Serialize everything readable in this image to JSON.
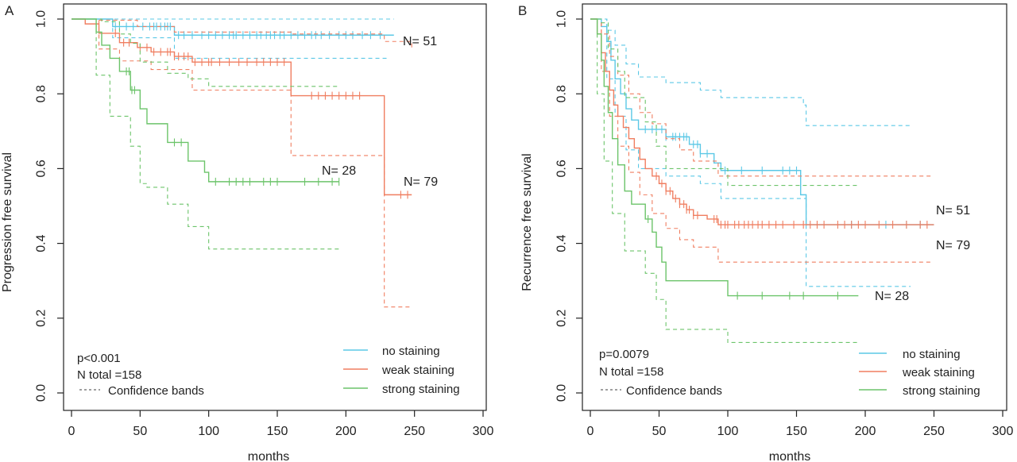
{
  "chart_data": [
    {
      "panel_label": "A",
      "type": "line",
      "xlabel": "months",
      "ylabel": "Progression free survival",
      "xlim": [
        0,
        300
      ],
      "ylim": [
        0,
        1
      ],
      "x_ticks": [
        "0",
        "50",
        "100",
        "150",
        "200",
        "250",
        "300"
      ],
      "y_ticks": [
        "0.0",
        "0.2",
        "0.4",
        "0.6",
        "0.8",
        "1.0"
      ],
      "grid": false,
      "p_value": "p<0.001",
      "n_total": "N total =158",
      "confidence_label": "Confidence bands",
      "legend_placement": "bottom-right",
      "series": [
        {
          "name": "no staining",
          "color": "#5bc8e6",
          "n_label": "N= 51",
          "steps": [
            [
              0,
              1.0
            ],
            [
              30,
              0.98
            ],
            [
              75,
              0.957
            ],
            [
              235,
              0.957
            ]
          ],
          "upper": [
            [
              0,
              1.0
            ],
            [
              235,
              1.0
            ]
          ],
          "lower": [
            [
              0,
              1.0
            ],
            [
              30,
              0.95
            ],
            [
              75,
              0.895
            ],
            [
              230,
              0.895
            ]
          ],
          "censor": [
            32,
            35,
            40,
            45,
            52,
            57,
            60,
            62,
            65,
            68,
            70,
            72,
            78,
            82,
            88,
            95,
            100,
            105,
            110,
            115,
            118,
            120,
            125,
            130,
            135,
            138,
            142,
            145,
            148,
            152,
            155,
            160,
            165,
            170,
            175,
            178,
            182,
            188,
            195,
            200,
            205,
            212,
            218,
            225
          ]
        },
        {
          "name": "weak staining",
          "color": "#f07e60",
          "n_label": "N= 79",
          "steps": [
            [
              0,
              1.0
            ],
            [
              10,
              0.987
            ],
            [
              20,
              0.962
            ],
            [
              35,
              0.937
            ],
            [
              48,
              0.924
            ],
            [
              58,
              0.912
            ],
            [
              75,
              0.9
            ],
            [
              88,
              0.885
            ],
            [
              160,
              0.885
            ],
            [
              160,
              0.795
            ],
            [
              228,
              0.795
            ],
            [
              228,
              0.53
            ],
            [
              248,
              0.53
            ]
          ],
          "upper": [
            [
              0,
              1.0
            ],
            [
              20,
              0.997
            ],
            [
              48,
              0.98
            ],
            [
              75,
              0.965
            ],
            [
              160,
              0.96
            ],
            [
              228,
              0.94
            ],
            [
              248,
              0.92
            ]
          ],
          "lower": [
            [
              0,
              1.0
            ],
            [
              20,
              0.92
            ],
            [
              35,
              0.888
            ],
            [
              58,
              0.865
            ],
            [
              88,
              0.81
            ],
            [
              160,
              0.81
            ],
            [
              160,
              0.635
            ],
            [
              228,
              0.635
            ],
            [
              228,
              0.23
            ],
            [
              248,
              0.23
            ]
          ],
          "censor": [
            32,
            38,
            42,
            50,
            55,
            60,
            65,
            70,
            72,
            75,
            78,
            82,
            85,
            90,
            95,
            100,
            102,
            108,
            115,
            122,
            128,
            135,
            140,
            145,
            150,
            155,
            175,
            180,
            185,
            190,
            195,
            200,
            205,
            210,
            240,
            245
          ]
        },
        {
          "name": "strong staining",
          "color": "#6cc46a",
          "n_label": "N= 28",
          "steps": [
            [
              0,
              1.0
            ],
            [
              18,
              0.965
            ],
            [
              22,
              0.93
            ],
            [
              28,
              0.895
            ],
            [
              35,
              0.86
            ],
            [
              43,
              0.81
            ],
            [
              50,
              0.76
            ],
            [
              55,
              0.72
            ],
            [
              70,
              0.67
            ],
            [
              85,
              0.62
            ],
            [
              97,
              0.59
            ],
            [
              100,
              0.565
            ],
            [
              195,
              0.565
            ]
          ],
          "upper": [
            [
              0,
              1.0
            ],
            [
              22,
              0.993
            ],
            [
              35,
              0.96
            ],
            [
              43,
              0.935
            ],
            [
              50,
              0.885
            ],
            [
              70,
              0.855
            ],
            [
              85,
              0.84
            ],
            [
              100,
              0.82
            ],
            [
              195,
              0.82
            ]
          ],
          "lower": [
            [
              0,
              1.0
            ],
            [
              18,
              0.85
            ],
            [
              28,
              0.74
            ],
            [
              43,
              0.66
            ],
            [
              50,
              0.56
            ],
            [
              55,
              0.55
            ],
            [
              70,
              0.505
            ],
            [
              85,
              0.445
            ],
            [
              100,
              0.385
            ],
            [
              195,
              0.385
            ]
          ],
          "censor": [
            40,
            42,
            44,
            46,
            75,
            80,
            105,
            115,
            120,
            125,
            130,
            140,
            145,
            150,
            170,
            180,
            190,
            195
          ]
        }
      ]
    },
    {
      "panel_label": "B",
      "type": "line",
      "xlabel": "months",
      "ylabel": "Recurrence free survival",
      "xlim": [
        0,
        300
      ],
      "ylim": [
        0,
        1
      ],
      "x_ticks": [
        "0",
        "50",
        "100",
        "150",
        "200",
        "250",
        "300"
      ],
      "y_ticks": [
        "0.0",
        "0.2",
        "0.4",
        "0.6",
        "0.8",
        "1.0"
      ],
      "grid": false,
      "p_value": "p=0.0079",
      "n_total": "N total =158",
      "confidence_label": "Confidence bands",
      "legend_placement": "bottom-right",
      "series": [
        {
          "name": "no staining",
          "color": "#5bc8e6",
          "n_label": "N= 51",
          "steps": [
            [
              0,
              1.0
            ],
            [
              8,
              0.98
            ],
            [
              12,
              0.94
            ],
            [
              15,
              0.89
            ],
            [
              18,
              0.84
            ],
            [
              22,
              0.8
            ],
            [
              26,
              0.76
            ],
            [
              30,
              0.73
            ],
            [
              35,
              0.705
            ],
            [
              55,
              0.685
            ],
            [
              72,
              0.665
            ],
            [
              80,
              0.64
            ],
            [
              90,
              0.615
            ],
            [
              95,
              0.595
            ],
            [
              150,
              0.595
            ],
            [
              153,
              0.53
            ],
            [
              157,
              0.45
            ],
            [
              250,
              0.45
            ]
          ],
          "upper": [
            [
              0,
              1.0
            ],
            [
              12,
              0.97
            ],
            [
              18,
              0.93
            ],
            [
              26,
              0.88
            ],
            [
              35,
              0.845
            ],
            [
              55,
              0.83
            ],
            [
              80,
              0.81
            ],
            [
              95,
              0.79
            ],
            [
              155,
              0.77
            ],
            [
              157,
              0.715
            ],
            [
              233,
              0.715
            ]
          ],
          "lower": [
            [
              0,
              1.0
            ],
            [
              12,
              0.84
            ],
            [
              18,
              0.74
            ],
            [
              26,
              0.65
            ],
            [
              35,
              0.6
            ],
            [
              55,
              0.58
            ],
            [
              80,
              0.56
            ],
            [
              95,
              0.52
            ],
            [
              150,
              0.52
            ],
            [
              157,
              0.285
            ],
            [
              233,
              0.285
            ]
          ],
          "censor": [
            40,
            45,
            48,
            52,
            55,
            60,
            62,
            65,
            68,
            70,
            75,
            78,
            80,
            85,
            98,
            110,
            125,
            140,
            145,
            150,
            190,
            215,
            230,
            240
          ]
        },
        {
          "name": "weak staining",
          "color": "#f07e60",
          "n_label": "N= 79",
          "steps": [
            [
              0,
              1.0
            ],
            [
              5,
              0.96
            ],
            [
              8,
              0.91
            ],
            [
              11,
              0.86
            ],
            [
              14,
              0.81
            ],
            [
              17,
              0.77
            ],
            [
              20,
              0.74
            ],
            [
              24,
              0.71
            ],
            [
              28,
              0.68
            ],
            [
              32,
              0.655
            ],
            [
              36,
              0.625
            ],
            [
              40,
              0.6
            ],
            [
              45,
              0.58
            ],
            [
              50,
              0.56
            ],
            [
              55,
              0.54
            ],
            [
              60,
              0.52
            ],
            [
              65,
              0.505
            ],
            [
              70,
              0.49
            ],
            [
              75,
              0.475
            ],
            [
              85,
              0.465
            ],
            [
              93,
              0.45
            ],
            [
              250,
              0.45
            ]
          ],
          "upper": [
            [
              0,
              1.0
            ],
            [
              8,
              0.96
            ],
            [
              14,
              0.9
            ],
            [
              20,
              0.85
            ],
            [
              28,
              0.8
            ],
            [
              36,
              0.75
            ],
            [
              45,
              0.72
            ],
            [
              55,
              0.68
            ],
            [
              65,
              0.65
            ],
            [
              75,
              0.62
            ],
            [
              93,
              0.58
            ],
            [
              248,
              0.58
            ]
          ],
          "lower": [
            [
              0,
              1.0
            ],
            [
              8,
              0.86
            ],
            [
              14,
              0.74
            ],
            [
              20,
              0.66
            ],
            [
              28,
              0.59
            ],
            [
              36,
              0.53
            ],
            [
              45,
              0.48
            ],
            [
              55,
              0.44
            ],
            [
              65,
              0.41
            ],
            [
              75,
              0.39
            ],
            [
              93,
              0.35
            ],
            [
              248,
              0.35
            ]
          ],
          "censor": [
            48,
            52,
            55,
            58,
            62,
            65,
            68,
            70,
            72,
            75,
            78,
            90,
            92,
            95,
            98,
            100,
            105,
            108,
            112,
            115,
            118,
            122,
            125,
            130,
            135,
            140,
            148,
            155,
            160,
            165,
            170,
            180,
            185,
            190,
            195,
            200,
            210,
            220,
            230,
            240,
            245
          ]
        },
        {
          "name": "strong staining",
          "color": "#6cc46a",
          "n_label": "N= 28",
          "steps": [
            [
              0,
              1.0
            ],
            [
              5,
              0.96
            ],
            [
              8,
              0.89
            ],
            [
              10,
              0.82
            ],
            [
              13,
              0.75
            ],
            [
              16,
              0.68
            ],
            [
              20,
              0.61
            ],
            [
              25,
              0.54
            ],
            [
              30,
              0.505
            ],
            [
              40,
              0.465
            ],
            [
              45,
              0.43
            ],
            [
              48,
              0.39
            ],
            [
              52,
              0.35
            ],
            [
              55,
              0.3
            ],
            [
              100,
              0.3
            ],
            [
              100,
              0.26
            ],
            [
              195,
              0.26
            ]
          ],
          "upper": [
            [
              0,
              1.0
            ],
            [
              8,
              0.99
            ],
            [
              13,
              0.92
            ],
            [
              20,
              0.86
            ],
            [
              25,
              0.79
            ],
            [
              40,
              0.725
            ],
            [
              48,
              0.66
            ],
            [
              55,
              0.6
            ],
            [
              100,
              0.555
            ],
            [
              195,
              0.555
            ]
          ],
          "lower": [
            [
              0,
              1.0
            ],
            [
              5,
              0.8
            ],
            [
              10,
              0.62
            ],
            [
              16,
              0.48
            ],
            [
              25,
              0.38
            ],
            [
              40,
              0.32
            ],
            [
              48,
              0.25
            ],
            [
              55,
              0.17
            ],
            [
              100,
              0.17
            ],
            [
              100,
              0.135
            ],
            [
              195,
              0.135
            ]
          ],
          "censor": [
            42,
            107,
            125,
            145,
            155,
            180
          ]
        }
      ]
    }
  ]
}
